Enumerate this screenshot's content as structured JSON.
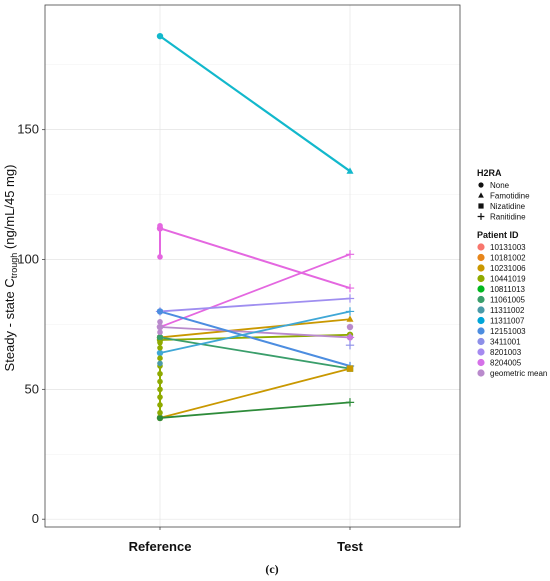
{
  "chart_data": {
    "type": "line",
    "caption": "(c)",
    "ylabel": "Steady - state C",
    "ylabel_sub": "trough",
    "ylabel_tail": " (ng/mL/45 mg)",
    "categories": [
      "Reference",
      "Test"
    ],
    "ylim": [
      -3,
      198
    ],
    "yticks": [
      0,
      50,
      100,
      150
    ],
    "grid": true,
    "legend_placement": "right",
    "legend_shape": {
      "title": "H2RA",
      "items": [
        {
          "label": "None",
          "shape": "circle"
        },
        {
          "label": "Famotidine",
          "shape": "triangle"
        },
        {
          "label": "Nizatidine",
          "shape": "square"
        },
        {
          "label": "Ranitidine",
          "shape": "plus"
        }
      ]
    },
    "legend_color": {
      "title": "Patient ID",
      "items": [
        {
          "label": "10131003",
          "color": "#F8766D"
        },
        {
          "label": "10181002",
          "color": "#E7861B"
        },
        {
          "label": "10231006",
          "color": "#C99800"
        },
        {
          "label": "10441019",
          "color": "#8FAA00"
        },
        {
          "label": "10811013",
          "color": "#00B81F"
        },
        {
          "label": "11061005",
          "color": "#3A9E6B"
        },
        {
          "label": "11311002",
          "color": "#4A9AA8"
        },
        {
          "label": "11311007",
          "color": "#00A5D8"
        },
        {
          "label": "12151003",
          "color": "#4C8DE0"
        },
        {
          "label": "3411001",
          "color": "#8D8FE8"
        },
        {
          "label": "8201003",
          "color": "#A58AF0"
        },
        {
          "label": "8204005",
          "color": "#D571E8"
        },
        {
          "label": "geometric mean",
          "color": "#B98ACC"
        }
      ]
    },
    "series": [
      {
        "name": "11311002",
        "color": "#12B8CC",
        "width": 2.2,
        "values": [
          186,
          134
        ],
        "shapes": [
          "circle",
          "triangle"
        ]
      },
      {
        "name": "8204005",
        "color": "#E467E0",
        "width": 2,
        "values": [
          112,
          89
        ],
        "shapes": [
          "circle",
          "plus"
        ]
      },
      {
        "name": "8201003",
        "color": "#E467E0",
        "width": 1.8,
        "values": [
          74,
          102
        ],
        "shapes": [
          "circle",
          "plus"
        ]
      },
      {
        "name": "3411001",
        "color": "#9F8EF0",
        "width": 1.8,
        "values": [
          80,
          85
        ],
        "shapes": [
          "plus",
          "plus"
        ]
      },
      {
        "name": "10231006",
        "color": "#C99800",
        "width": 1.8,
        "values": [
          70,
          77
        ],
        "shapes": [
          "circle",
          "triangle"
        ]
      },
      {
        "name": "10441019",
        "color": "#8FAA00",
        "width": 1.8,
        "values": [
          69,
          71
        ],
        "shapes": [
          "circle",
          "circle"
        ]
      },
      {
        "name": "geometric mean",
        "color": "#B98ACC",
        "width": 1.8,
        "values": [
          74,
          70
        ],
        "shapes": [
          "circle",
          "circle"
        ]
      },
      {
        "name": "11061005",
        "color": "#3A9E6B",
        "width": 1.8,
        "values": [
          70,
          58
        ],
        "shapes": [
          "circle",
          "square"
        ]
      },
      {
        "name": "12151003",
        "color": "#4C8DE0",
        "width": 2,
        "values": [
          80,
          59
        ],
        "shapes": [
          "circle",
          "plus"
        ]
      },
      {
        "name": "11311007",
        "color": "#3FA7D6",
        "width": 1.8,
        "values": [
          64,
          80
        ],
        "shapes": [
          "circle",
          "plus"
        ]
      },
      {
        "name": "10181002",
        "color": "#C99800",
        "width": 1.8,
        "values": [
          39,
          58
        ],
        "shapes": [
          "circle",
          "square"
        ]
      },
      {
        "name": "10811013",
        "color": "#2E8B3A",
        "width": 1.8,
        "values": [
          39,
          45
        ],
        "shapes": [
          "circle",
          "plus"
        ]
      }
    ],
    "reference_points": [
      {
        "value": 113,
        "color": "#E467E0"
      },
      {
        "value": 101,
        "color": "#E467E0"
      },
      {
        "value": 76,
        "color": "#B98ACC"
      },
      {
        "value": 72,
        "color": "#B98ACC"
      },
      {
        "value": 68,
        "color": "#8FAA00"
      },
      {
        "value": 66,
        "color": "#8FAA00"
      },
      {
        "value": 62,
        "color": "#8FAA00"
      },
      {
        "value": 59,
        "color": "#8FAA00"
      },
      {
        "value": 56,
        "color": "#8FAA00"
      },
      {
        "value": 53,
        "color": "#8FAA00"
      },
      {
        "value": 50,
        "color": "#8FAA00"
      },
      {
        "value": 47,
        "color": "#8FAA00"
      },
      {
        "value": 44,
        "color": "#8FAA00"
      },
      {
        "value": 41,
        "color": "#8FAA00"
      },
      {
        "value": 60,
        "color": "#4A9AA8"
      }
    ],
    "test_points": [
      {
        "value": 74,
        "color": "#B98ACC",
        "shape": "circle"
      },
      {
        "value": 70,
        "color": "#D571E8",
        "shape": "plus"
      },
      {
        "value": 67,
        "color": "#8D8FE8",
        "shape": "plus"
      }
    ]
  }
}
